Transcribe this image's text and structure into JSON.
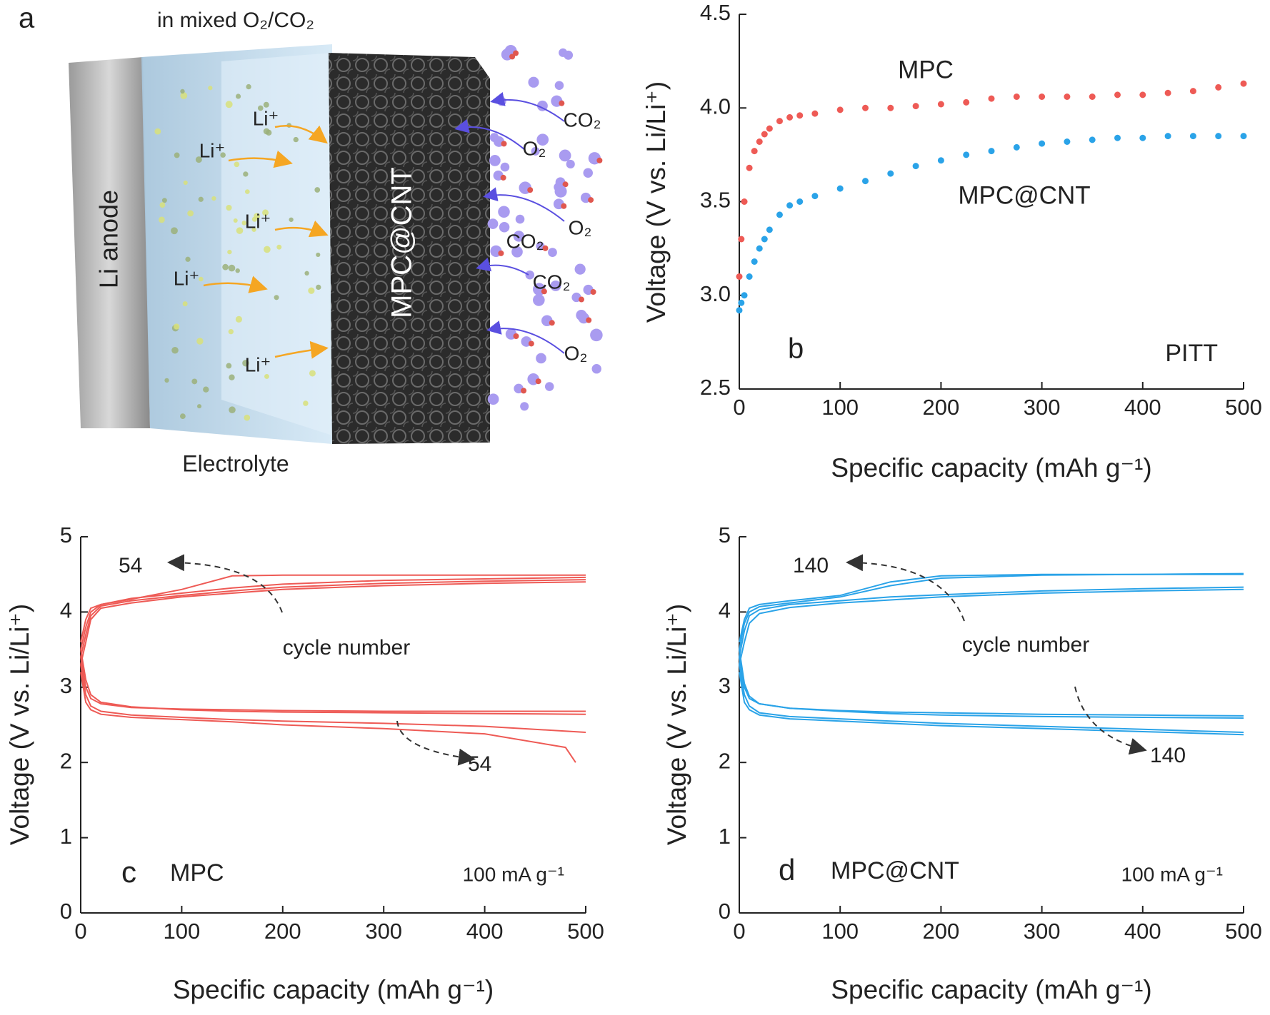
{
  "panel_a": {
    "label": "a",
    "title": "in mixed O₂/CO₂",
    "anode": "Li anode",
    "electrolyte": "Electrolyte",
    "cathode": "MPC@CNT",
    "ions": [
      "Li⁺",
      "Li⁺",
      "Li⁺",
      "Li⁺",
      "Li⁺"
    ],
    "co2": [
      "CO₂",
      "CO₂",
      "CO₂"
    ],
    "o2": [
      "O₂",
      "O₂",
      "O₂"
    ]
  },
  "chart_data": [
    {
      "type": "scatter",
      "xlabel": "Specific capacity (mAh g⁻¹)",
      "ylabel": "Voltage (V vs. Li/Li⁺)",
      "xlim": [
        0,
        500
      ],
      "ylim": [
        2.5,
        4.5
      ],
      "xticks": [
        0,
        100,
        200,
        300,
        400,
        500
      ],
      "yticks": [
        {
          "value": 2.5,
          "label": "2.5"
        },
        {
          "value": 3,
          "label": "3.0"
        },
        {
          "value": 3.5,
          "label": "3.5"
        },
        {
          "value": 4,
          "label": "4.0"
        },
        {
          "value": 4.5,
          "label": "4.5"
        }
      ],
      "annotations": [
        "b",
        "PITT"
      ],
      "series": [
        {
          "name": "MPC",
          "color": "#ee5a55",
          "x": [
            0,
            2,
            5,
            10,
            15,
            20,
            25,
            30,
            40,
            50,
            60,
            75,
            100,
            125,
            150,
            175,
            200,
            225,
            250,
            275,
            300,
            325,
            350,
            375,
            400,
            425,
            450,
            475,
            500
          ],
          "values": [
            3.1,
            3.3,
            3.5,
            3.68,
            3.77,
            3.82,
            3.86,
            3.89,
            3.93,
            3.95,
            3.96,
            3.97,
            3.99,
            4.0,
            4.0,
            4.01,
            4.02,
            4.03,
            4.05,
            4.06,
            4.06,
            4.06,
            4.06,
            4.07,
            4.07,
            4.08,
            4.09,
            4.11,
            4.13
          ]
        },
        {
          "name": "MPC@CNT",
          "color": "#2aa3e8",
          "x": [
            0,
            2,
            5,
            10,
            15,
            20,
            25,
            30,
            40,
            50,
            60,
            75,
            100,
            125,
            150,
            175,
            200,
            225,
            250,
            275,
            300,
            325,
            350,
            375,
            400,
            425,
            450,
            475,
            500
          ],
          "values": [
            2.92,
            2.96,
            3.0,
            3.1,
            3.18,
            3.25,
            3.3,
            3.35,
            3.43,
            3.48,
            3.5,
            3.53,
            3.57,
            3.61,
            3.65,
            3.69,
            3.72,
            3.75,
            3.77,
            3.79,
            3.81,
            3.82,
            3.83,
            3.84,
            3.84,
            3.85,
            3.85,
            3.85,
            3.85
          ]
        }
      ]
    },
    {
      "type": "line",
      "xlabel": "Specific capacity (mAh g⁻¹)",
      "ylabel": "Voltage (V vs. Li/Li⁺)",
      "xlim": [
        0,
        500
      ],
      "ylim": [
        0,
        5
      ],
      "xticks": [
        0,
        100,
        200,
        300,
        400,
        500
      ],
      "yticks": [
        0,
        1,
        2,
        3,
        4,
        5
      ],
      "annotations": [
        "54",
        "cycle number",
        "54",
        "c",
        "MPC",
        "100 mA g⁻¹"
      ],
      "series": [
        {
          "color": "#ee5a55",
          "x": [
            0,
            5,
            10,
            20,
            50,
            100,
            150,
            200,
            300,
            400,
            500
          ],
          "values": [
            3.3,
            3.6,
            3.9,
            4.05,
            4.12,
            4.2,
            4.25,
            4.3,
            4.35,
            4.38,
            4.4
          ]
        },
        {
          "color": "#ee5a55",
          "x": [
            0,
            5,
            10,
            20,
            50,
            100,
            150,
            200,
            300,
            400,
            500
          ],
          "values": [
            3.4,
            3.7,
            3.95,
            4.08,
            4.15,
            4.22,
            4.28,
            4.33,
            4.38,
            4.41,
            4.43
          ]
        },
        {
          "color": "#ee5a55",
          "x": [
            0,
            5,
            10,
            20,
            50,
            100,
            150,
            200,
            300,
            400,
            500
          ],
          "values": [
            3.5,
            3.8,
            4.0,
            4.1,
            4.18,
            4.25,
            4.32,
            4.37,
            4.42,
            4.44,
            4.46
          ]
        },
        {
          "color": "#ee5a55",
          "x": [
            0,
            5,
            10,
            20,
            50,
            100,
            150,
            200,
            300,
            400,
            500
          ],
          "values": [
            3.6,
            3.9,
            4.05,
            4.1,
            4.17,
            4.3,
            4.48,
            4.49,
            4.49,
            4.49,
            4.49
          ]
        },
        {
          "color": "#ee5a55",
          "x": [
            0,
            5,
            10,
            20,
            50,
            100,
            150,
            200,
            300,
            400,
            500
          ],
          "values": [
            3.4,
            3.0,
            2.85,
            2.78,
            2.73,
            2.71,
            2.7,
            2.69,
            2.68,
            2.68,
            2.68
          ]
        },
        {
          "color": "#ee5a55",
          "x": [
            0,
            5,
            10,
            20,
            50,
            100,
            150,
            200,
            300,
            400,
            500
          ],
          "values": [
            3.5,
            3.1,
            2.9,
            2.8,
            2.74,
            2.7,
            2.68,
            2.67,
            2.66,
            2.65,
            2.64
          ]
        },
        {
          "color": "#ee5a55",
          "x": [
            0,
            5,
            10,
            20,
            50,
            100,
            150,
            200,
            300,
            400,
            500
          ],
          "values": [
            3.3,
            2.9,
            2.75,
            2.68,
            2.63,
            2.6,
            2.57,
            2.55,
            2.52,
            2.48,
            2.4
          ]
        },
        {
          "color": "#ee5a55",
          "x": [
            0,
            5,
            10,
            20,
            50,
            100,
            150,
            200,
            300,
            400,
            480,
            490
          ],
          "values": [
            3.2,
            2.8,
            2.7,
            2.64,
            2.6,
            2.57,
            2.54,
            2.5,
            2.45,
            2.38,
            2.2,
            2.0
          ]
        }
      ]
    },
    {
      "type": "line",
      "xlabel": "Specific capacity (mAh g⁻¹)",
      "ylabel": "Voltage (V vs. Li/Li⁺)",
      "xlim": [
        0,
        500
      ],
      "ylim": [
        0,
        5
      ],
      "xticks": [
        0,
        100,
        200,
        300,
        400,
        500
      ],
      "yticks": [
        0,
        1,
        2,
        3,
        4,
        5
      ],
      "annotations": [
        "140",
        "cycle number",
        "140",
        "d",
        "MPC@CNT",
        "100 mA g⁻¹"
      ],
      "series": [
        {
          "color": "#2aa3e8",
          "x": [
            0,
            5,
            10,
            20,
            50,
            100,
            150,
            200,
            300,
            400,
            500
          ],
          "values": [
            3.3,
            3.6,
            3.85,
            3.98,
            4.06,
            4.12,
            4.16,
            4.2,
            4.25,
            4.28,
            4.3
          ]
        },
        {
          "color": "#2aa3e8",
          "x": [
            0,
            5,
            10,
            20,
            50,
            100,
            150,
            200,
            300,
            400,
            500
          ],
          "values": [
            3.4,
            3.75,
            3.95,
            4.03,
            4.1,
            4.15,
            4.2,
            4.23,
            4.28,
            4.31,
            4.33
          ]
        },
        {
          "color": "#2aa3e8",
          "x": [
            0,
            5,
            10,
            20,
            50,
            100,
            150,
            200,
            300,
            400,
            500
          ],
          "values": [
            3.5,
            3.85,
            4.0,
            4.07,
            4.12,
            4.2,
            4.35,
            4.45,
            4.49,
            4.5,
            4.5
          ]
        },
        {
          "color": "#2aa3e8",
          "x": [
            0,
            5,
            10,
            20,
            50,
            100,
            150,
            200,
            300,
            400,
            500
          ],
          "values": [
            3.6,
            3.9,
            4.05,
            4.1,
            4.15,
            4.22,
            4.4,
            4.48,
            4.5,
            4.5,
            4.51
          ]
        },
        {
          "color": "#2aa3e8",
          "x": [
            0,
            5,
            10,
            20,
            50,
            100,
            150,
            200,
            300,
            400,
            500
          ],
          "values": [
            3.4,
            3.0,
            2.85,
            2.78,
            2.72,
            2.69,
            2.67,
            2.66,
            2.64,
            2.63,
            2.62
          ]
        },
        {
          "color": "#2aa3e8",
          "x": [
            0,
            5,
            10,
            20,
            50,
            100,
            150,
            200,
            300,
            400,
            500
          ],
          "values": [
            3.5,
            3.05,
            2.88,
            2.78,
            2.72,
            2.68,
            2.65,
            2.63,
            2.61,
            2.6,
            2.59
          ]
        },
        {
          "color": "#2aa3e8",
          "x": [
            0,
            5,
            10,
            20,
            50,
            100,
            150,
            200,
            300,
            400,
            500
          ],
          "values": [
            3.3,
            2.9,
            2.75,
            2.66,
            2.61,
            2.58,
            2.55,
            2.52,
            2.48,
            2.44,
            2.4
          ]
        },
        {
          "color": "#2aa3e8",
          "x": [
            0,
            5,
            10,
            20,
            50,
            100,
            150,
            200,
            300,
            400,
            500
          ],
          "values": [
            3.2,
            2.8,
            2.7,
            2.63,
            2.58,
            2.55,
            2.52,
            2.49,
            2.45,
            2.41,
            2.37
          ]
        }
      ]
    }
  ]
}
